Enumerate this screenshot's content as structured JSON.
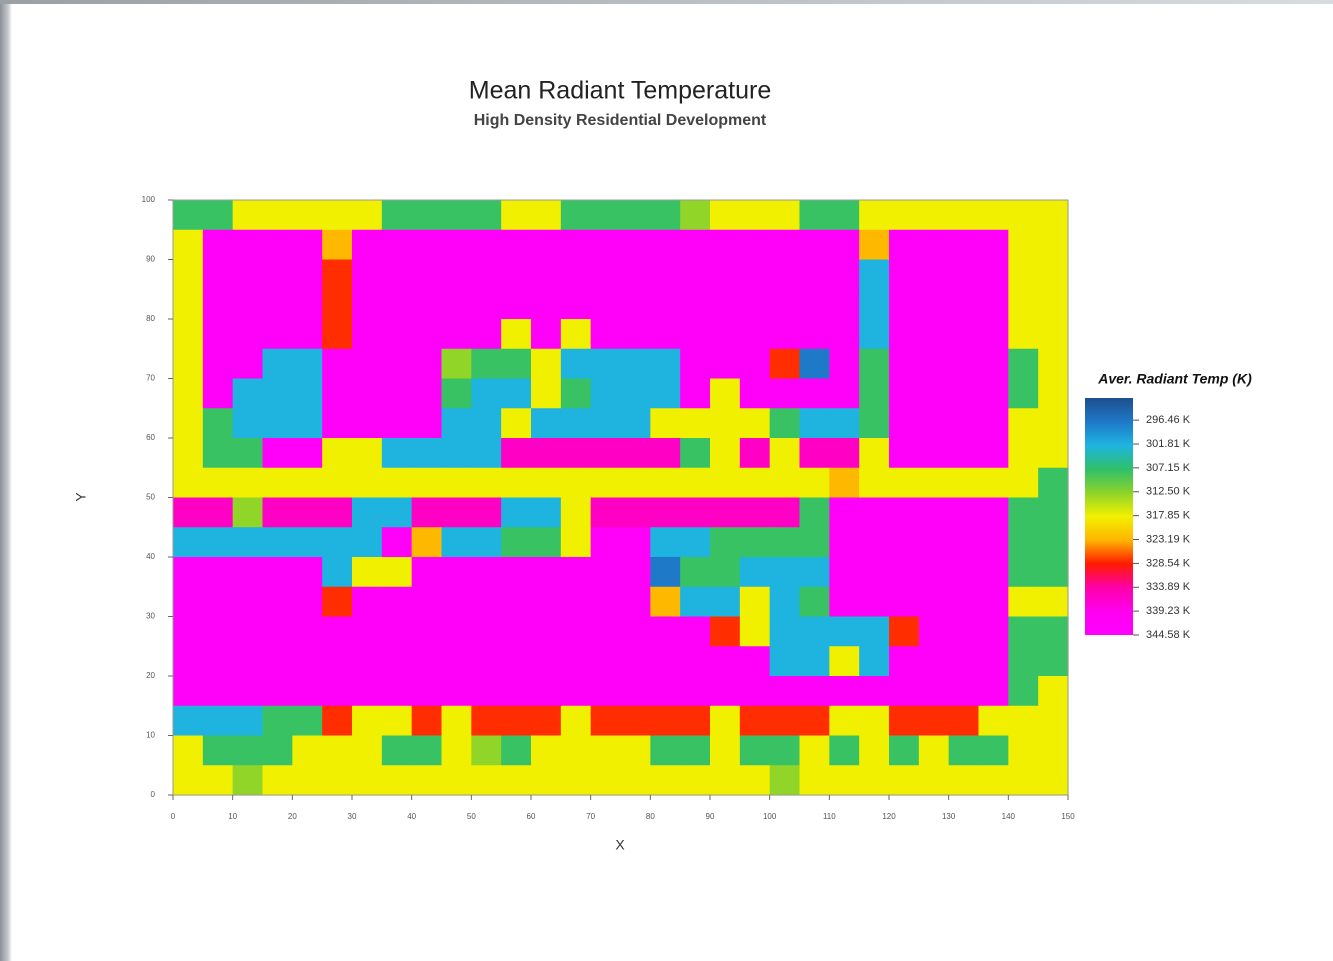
{
  "chart_data": {
    "type": "heatmap",
    "title": "Mean Radiant Temperature",
    "subtitle": "High Density Residential Development",
    "x_label": "X",
    "y_label": "Y",
    "xlim": [
      0,
      150
    ],
    "ylim": [
      0,
      100
    ],
    "xticks": [
      0,
      10,
      20,
      30,
      40,
      50,
      60,
      70,
      80,
      90,
      100,
      110,
      120,
      130,
      140,
      150
    ],
    "yticks": [
      0,
      10,
      20,
      30,
      40,
      50,
      60,
      70,
      80,
      90,
      100
    ],
    "x": [
      2.5,
      7.5,
      12.5,
      17.5,
      22.5,
      27.5,
      32.5,
      37.5,
      42.5,
      47.5,
      52.5,
      57.5,
      62.5,
      67.5,
      72.5,
      77.5,
      82.5,
      87.5,
      92.5,
      97.5,
      102.5,
      107.5,
      112.5,
      117.5,
      122.5,
      127.5,
      132.5,
      137.5,
      142.5,
      147.5
    ],
    "y": [
      97.5,
      92.5,
      87.5,
      82.5,
      77.5,
      72.5,
      67.5,
      62.5,
      57.5,
      52.5,
      47.5,
      42.5,
      37.5,
      32.5,
      27.5,
      22.5,
      17.5,
      12.5,
      7.5,
      2.5
    ],
    "z": [
      [
        308,
        308,
        318,
        318,
        318,
        318,
        318,
        308,
        308,
        308,
        308,
        318,
        318,
        308,
        308,
        308,
        308,
        313,
        318,
        318,
        318,
        308,
        308,
        318,
        318,
        318,
        318,
        318,
        318,
        318
      ],
      [
        318,
        342,
        342,
        342,
        342,
        323,
        342,
        342,
        342,
        342,
        342,
        342,
        342,
        342,
        342,
        342,
        342,
        342,
        342,
        342,
        342,
        342,
        342,
        323,
        342,
        342,
        342,
        342,
        318,
        318
      ],
      [
        318,
        342,
        342,
        342,
        342,
        328,
        342,
        342,
        342,
        342,
        342,
        342,
        342,
        342,
        342,
        342,
        342,
        342,
        342,
        342,
        342,
        342,
        342,
        302,
        342,
        342,
        342,
        342,
        318,
        318
      ],
      [
        318,
        342,
        342,
        342,
        342,
        328,
        342,
        342,
        342,
        342,
        342,
        342,
        342,
        342,
        342,
        342,
        342,
        342,
        342,
        342,
        342,
        342,
        342,
        302,
        342,
        342,
        342,
        342,
        318,
        318
      ],
      [
        318,
        342,
        342,
        342,
        342,
        328,
        342,
        342,
        342,
        342,
        342,
        318,
        342,
        318,
        342,
        342,
        342,
        342,
        342,
        342,
        342,
        342,
        342,
        302,
        342,
        342,
        342,
        342,
        318,
        318
      ],
      [
        318,
        342,
        342,
        302,
        302,
        342,
        342,
        342,
        342,
        313,
        308,
        308,
        318,
        302,
        302,
        302,
        302,
        342,
        342,
        342,
        328,
        297,
        342,
        308,
        342,
        342,
        342,
        342,
        308,
        318
      ],
      [
        318,
        342,
        302,
        302,
        302,
        342,
        342,
        342,
        342,
        308,
        302,
        302,
        318,
        308,
        302,
        302,
        302,
        342,
        318,
        342,
        342,
        342,
        342,
        308,
        342,
        342,
        342,
        342,
        308,
        318
      ],
      [
        318,
        308,
        302,
        302,
        302,
        342,
        342,
        342,
        342,
        302,
        302,
        318,
        302,
        302,
        302,
        302,
        318,
        318,
        318,
        318,
        308,
        302,
        302,
        308,
        342,
        342,
        342,
        342,
        318,
        318
      ],
      [
        318,
        308,
        308,
        342,
        342,
        318,
        318,
        302,
        302,
        302,
        302,
        336,
        336,
        336,
        336,
        336,
        336,
        308,
        318,
        336,
        318,
        336,
        336,
        318,
        342,
        342,
        342,
        342,
        318,
        318
      ],
      [
        318,
        318,
        318,
        318,
        318,
        318,
        318,
        318,
        318,
        318,
        318,
        318,
        318,
        318,
        318,
        318,
        318,
        318,
        318,
        318,
        318,
        318,
        323,
        318,
        318,
        318,
        318,
        318,
        318,
        308
      ],
      [
        336,
        336,
        313,
        336,
        336,
        336,
        302,
        302,
        336,
        336,
        336,
        302,
        302,
        318,
        336,
        336,
        336,
        336,
        336,
        336,
        336,
        308,
        342,
        342,
        342,
        342,
        342,
        342,
        308,
        308
      ],
      [
        302,
        302,
        302,
        302,
        302,
        302,
        302,
        342,
        323,
        302,
        302,
        308,
        308,
        318,
        342,
        342,
        302,
        302,
        308,
        308,
        308,
        308,
        342,
        342,
        342,
        342,
        342,
        342,
        308,
        308
      ],
      [
        342,
        342,
        342,
        342,
        342,
        302,
        318,
        318,
        342,
        342,
        342,
        342,
        342,
        342,
        342,
        342,
        297,
        308,
        308,
        302,
        302,
        302,
        342,
        342,
        342,
        342,
        342,
        342,
        308,
        308
      ],
      [
        342,
        342,
        342,
        342,
        342,
        328,
        342,
        342,
        342,
        342,
        342,
        342,
        342,
        342,
        342,
        342,
        323,
        302,
        302,
        318,
        302,
        308,
        342,
        342,
        342,
        342,
        342,
        342,
        318,
        318
      ],
      [
        342,
        342,
        342,
        342,
        342,
        342,
        342,
        342,
        342,
        342,
        342,
        342,
        342,
        342,
        342,
        342,
        342,
        342,
        328,
        318,
        302,
        302,
        302,
        302,
        328,
        342,
        342,
        342,
        308,
        308
      ],
      [
        342,
        342,
        342,
        342,
        342,
        342,
        342,
        342,
        342,
        342,
        342,
        342,
        342,
        342,
        342,
        342,
        342,
        342,
        342,
        342,
        302,
        302,
        318,
        302,
        342,
        342,
        342,
        342,
        308,
        308
      ],
      [
        342,
        342,
        342,
        342,
        342,
        342,
        342,
        342,
        342,
        342,
        342,
        342,
        342,
        342,
        342,
        342,
        342,
        342,
        342,
        342,
        342,
        342,
        342,
        342,
        342,
        342,
        342,
        342,
        308,
        318
      ],
      [
        302,
        302,
        302,
        308,
        308,
        328,
        318,
        318,
        328,
        318,
        328,
        328,
        328,
        318,
        328,
        328,
        328,
        328,
        318,
        328,
        328,
        328,
        318,
        318,
        328,
        328,
        328,
        318,
        318,
        318
      ],
      [
        318,
        308,
        308,
        308,
        318,
        318,
        318,
        308,
        308,
        318,
        313,
        308,
        318,
        318,
        318,
        318,
        308,
        308,
        318,
        308,
        308,
        318,
        308,
        318,
        308,
        318,
        308,
        308,
        318,
        318
      ],
      [
        318,
        318,
        313,
        318,
        318,
        318,
        318,
        318,
        318,
        318,
        318,
        318,
        318,
        318,
        318,
        318,
        318,
        318,
        318,
        318,
        313,
        318,
        318,
        318,
        318,
        318,
        318,
        318,
        318,
        318
      ]
    ],
    "colorbar_title": "Aver. Radiant Temp (K)",
    "clim": [
      291.5,
      344.58
    ],
    "colors": [
      "#1d4f8f",
      "#1e78c8",
      "#1fb4e0",
      "#2ec06a",
      "#8cd42a",
      "#f2f000",
      "#ffb400",
      "#ff1a00",
      "#ff00a8",
      "#ff00f0",
      "#ff00ff"
    ],
    "colorbar_ticks": [
      {
        "value": 296.46,
        "label": "296.46 K"
      },
      {
        "value": 301.81,
        "label": "301.81 K"
      },
      {
        "value": 307.15,
        "label": "307.15 K"
      },
      {
        "value": 312.5,
        "label": "312.50 K"
      },
      {
        "value": 317.85,
        "label": "317.85 K"
      },
      {
        "value": 323.19,
        "label": "323.19 K"
      },
      {
        "value": 328.54,
        "label": "328.54 K"
      },
      {
        "value": 333.89,
        "label": "333.89 K"
      },
      {
        "value": 339.23,
        "label": "339.23 K"
      },
      {
        "value": 344.58,
        "label": "344.58 K"
      }
    ]
  }
}
